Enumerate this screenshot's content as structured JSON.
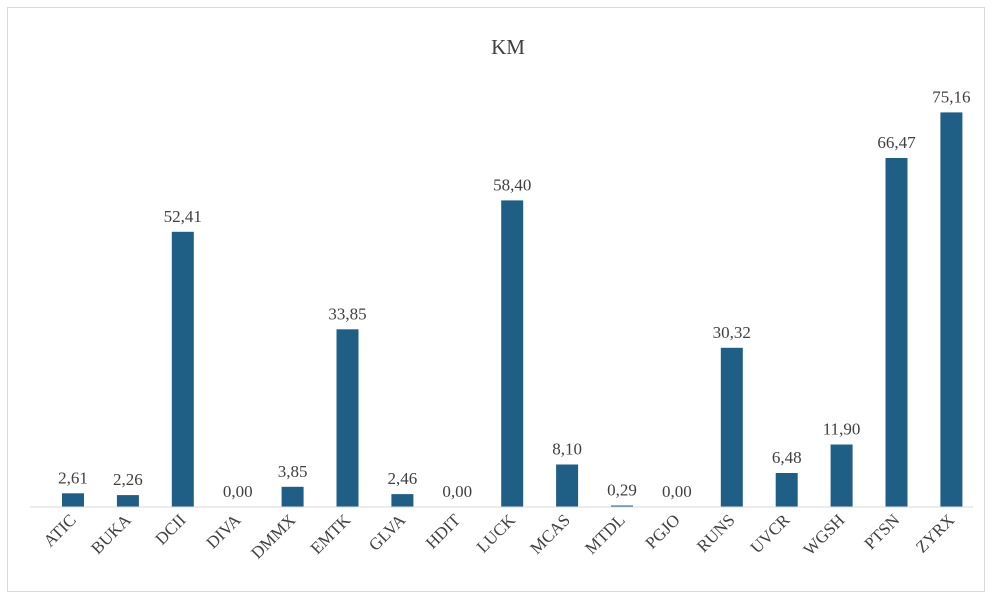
{
  "chart_data": {
    "type": "bar",
    "title": "KM",
    "categories": [
      "ATIC",
      "BUKA",
      "DCII",
      "DIVA",
      "DMMX",
      "EMTK",
      "GLVA",
      "HDIT",
      "LUCK",
      "MCAS",
      "MTDL",
      "PGJO",
      "RUNS",
      "UVCR",
      "WGSH",
      "PTSN",
      "ZYRX"
    ],
    "values": [
      2.61,
      2.26,
      52.41,
      0.0,
      3.85,
      33.85,
      2.46,
      0.0,
      58.4,
      8.1,
      0.29,
      0.0,
      30.32,
      6.48,
      11.9,
      66.47,
      75.16
    ],
    "data_labels": [
      "2,61",
      "2,26",
      "52,41",
      "0,00",
      "3,85",
      "33,85",
      "2,46",
      "0,00",
      "58,40",
      "8,10",
      "0,29",
      "0,00",
      "30,32",
      "6,48",
      "11,90",
      "66,47",
      "75,16"
    ],
    "xlabel": "",
    "ylabel": "",
    "ylim": [
      0,
      80
    ],
    "grid": false,
    "legend": "none",
    "bar_color": "#1f5f86"
  }
}
